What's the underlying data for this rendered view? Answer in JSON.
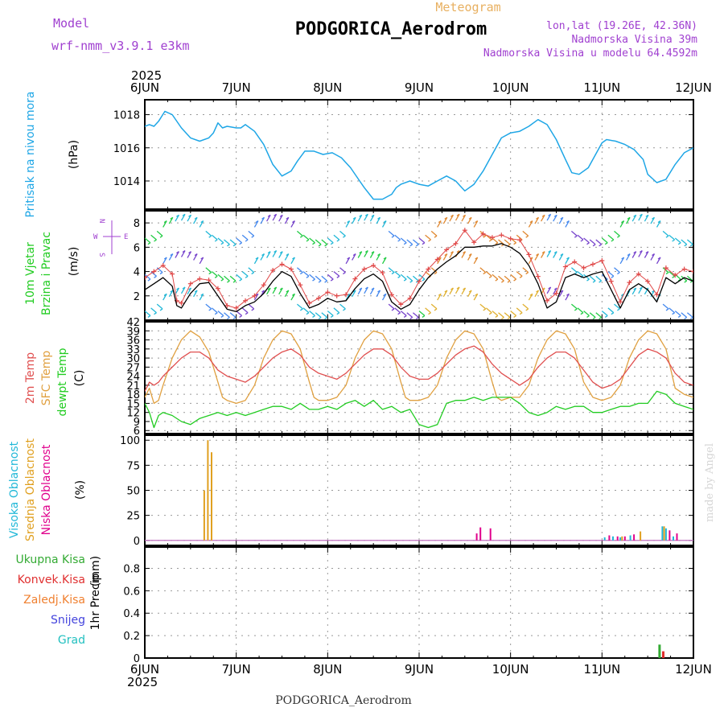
{
  "header": {
    "model_label": "Model",
    "model_name": "wrf-nmm_v3.9.1 e3km",
    "product": "Meteogram",
    "station": "PODGORICA_Aerodrom",
    "lonlat": "lon,lat (19.26E, 42.36N)",
    "elevation": "Nadmorska Visina 39m",
    "model_elevation": "Nadmorska Visina u modelu 64.4592m",
    "credit": "made by Angel",
    "footer_station": "PODGORICA_Aerodrom"
  },
  "colors": {
    "pressure": "#1ea6e6",
    "wind_speed": "#000000",
    "wind_gust": "#e04848",
    "temp_2m": "#e05050",
    "temp_sfc": "#e0a040",
    "dewpoint": "#22cc22",
    "cloud_high": "#22b8d8",
    "cloud_mid": "#e0a020",
    "cloud_low": "#e0008c",
    "precip_total": "#33aa33",
    "precip_conv": "#e03030",
    "precip_frz": "#f08030",
    "precip_snow": "#4444dd",
    "precip_graup": "#22c0c0",
    "purple_text": "#a040d0",
    "orange_text": "#e8b060"
  },
  "chart_data": [
    {
      "id": "pressure",
      "type": "line",
      "ylabel": "Pritisak na nivou mora",
      "units": "(hPa)",
      "ylim": [
        1012.3,
        1018.9
      ],
      "yticks": [
        "1014",
        "1016",
        "1018"
      ],
      "ytick_values": [
        1014,
        1016,
        1018
      ],
      "x_axis": {
        "year": "2025",
        "ticks": [
          "6JUN",
          "7JUN",
          "8JUN",
          "9JUN",
          "10JUN",
          "11JUN",
          "12JUN"
        ],
        "range_days": [
          0,
          6
        ]
      },
      "series": [
        {
          "name": "Pressure",
          "x": [
            0,
            0.05,
            0.1,
            0.15,
            0.22,
            0.3,
            0.4,
            0.5,
            0.6,
            0.7,
            0.75,
            0.8,
            0.85,
            0.9,
            1.0,
            1.05,
            1.1,
            1.2,
            1.3,
            1.4,
            1.5,
            1.6,
            1.67,
            1.75,
            1.85,
            1.95,
            2.05,
            2.15,
            2.25,
            2.35,
            2.4,
            2.5,
            2.6,
            2.7,
            2.75,
            2.8,
            2.9,
            3.0,
            3.1,
            3.2,
            3.3,
            3.4,
            3.45,
            3.5,
            3.6,
            3.7,
            3.8,
            3.9,
            4.0,
            4.1,
            4.2,
            4.3,
            4.4,
            4.5,
            4.6,
            4.67,
            4.75,
            4.85,
            5.0,
            5.05,
            5.15,
            5.25,
            5.35,
            5.45,
            5.5,
            5.6,
            5.7,
            5.8,
            5.9,
            6.0
          ],
          "values": [
            1017.3,
            1017.4,
            1017.3,
            1017.6,
            1018.2,
            1018.0,
            1017.2,
            1016.6,
            1016.4,
            1016.6,
            1016.9,
            1017.5,
            1017.2,
            1017.3,
            1017.2,
            1017.2,
            1017.4,
            1017.0,
            1016.2,
            1015.0,
            1014.3,
            1014.6,
            1015.2,
            1015.8,
            1015.8,
            1015.6,
            1015.7,
            1015.4,
            1014.8,
            1014.0,
            1013.6,
            1012.9,
            1012.9,
            1013.2,
            1013.6,
            1013.8,
            1014.0,
            1013.8,
            1013.7,
            1014.0,
            1014.3,
            1014.0,
            1013.7,
            1013.4,
            1013.8,
            1014.6,
            1015.6,
            1016.6,
            1016.9,
            1017.0,
            1017.3,
            1017.7,
            1017.4,
            1016.5,
            1015.3,
            1014.5,
            1014.4,
            1014.8,
            1016.3,
            1016.5,
            1016.4,
            1016.2,
            1015.9,
            1015.3,
            1014.4,
            1013.9,
            1014.1,
            1015.0,
            1015.7,
            1016.0
          ]
        }
      ]
    },
    {
      "id": "wind",
      "type": "line",
      "ylabel": [
        "10m Vjetar",
        "Brzina i Pravac"
      ],
      "units": "(m/s)",
      "ylim": [
        0,
        9
      ],
      "yticks": [
        "2",
        "4",
        "6",
        "8"
      ],
      "ytick_values": [
        2,
        4,
        6,
        8
      ],
      "compass": {
        "n": "N",
        "s": "S",
        "e": "E",
        "w": "W"
      },
      "series": [
        {
          "name": "Wind speed",
          "x": [
            0,
            0.1,
            0.2,
            0.3,
            0.35,
            0.4,
            0.5,
            0.6,
            0.7,
            0.8,
            0.9,
            1.0,
            1.1,
            1.2,
            1.3,
            1.4,
            1.5,
            1.6,
            1.7,
            1.8,
            1.9,
            2.0,
            2.1,
            2.2,
            2.3,
            2.4,
            2.5,
            2.6,
            2.7,
            2.8,
            2.9,
            3.0,
            3.1,
            3.2,
            3.3,
            3.4,
            3.5,
            3.6,
            3.7,
            3.8,
            3.9,
            4.0,
            4.1,
            4.2,
            4.3,
            4.4,
            4.5,
            4.6,
            4.7,
            4.8,
            4.9,
            5.0,
            5.1,
            5.2,
            5.3,
            5.4,
            5.5,
            5.6,
            5.7,
            5.8,
            5.9,
            6.0
          ],
          "values": [
            2.5,
            3.0,
            3.5,
            2.8,
            1.2,
            1.0,
            2.2,
            3.0,
            3.1,
            2.0,
            0.9,
            0.7,
            1.2,
            1.5,
            2.2,
            3.2,
            4.0,
            3.6,
            2.2,
            1.0,
            1.3,
            1.8,
            1.5,
            1.6,
            2.6,
            3.4,
            3.8,
            3.2,
            1.5,
            0.9,
            1.3,
            2.5,
            3.5,
            4.2,
            4.8,
            5.3,
            6.0,
            6.0,
            6.1,
            6.1,
            6.3,
            6.0,
            5.5,
            4.5,
            3.0,
            1.0,
            1.5,
            3.5,
            3.8,
            3.5,
            3.8,
            4.0,
            2.5,
            1.0,
            2.5,
            3.0,
            2.5,
            1.5,
            3.5,
            3.0,
            3.5,
            3.2
          ]
        },
        {
          "name": "Wind gust",
          "x": [
            0,
            0.1,
            0.2,
            0.3,
            0.35,
            0.4,
            0.5,
            0.6,
            0.7,
            0.8,
            0.9,
            1.0,
            1.1,
            1.2,
            1.3,
            1.4,
            1.5,
            1.6,
            1.7,
            1.8,
            1.9,
            2.0,
            2.1,
            2.2,
            2.3,
            2.4,
            2.5,
            2.6,
            2.7,
            2.8,
            2.9,
            3.0,
            3.1,
            3.2,
            3.3,
            3.4,
            3.5,
            3.6,
            3.7,
            3.8,
            3.9,
            4.0,
            4.1,
            4.2,
            4.3,
            4.4,
            4.5,
            4.6,
            4.7,
            4.8,
            4.9,
            5.0,
            5.1,
            5.2,
            5.3,
            5.4,
            5.5,
            5.6,
            5.7,
            5.8,
            5.9,
            6.0
          ],
          "values": [
            3.5,
            4.0,
            4.5,
            3.8,
            1.6,
            1.4,
            3.0,
            3.4,
            3.3,
            2.6,
            1.2,
            1.0,
            1.6,
            2.0,
            2.9,
            4.1,
            4.6,
            4.2,
            2.9,
            1.4,
            1.8,
            2.3,
            2.0,
            2.1,
            3.4,
            4.2,
            4.5,
            3.9,
            2.1,
            1.3,
            1.8,
            3.2,
            4.2,
            5.0,
            5.8,
            6.3,
            7.4,
            6.4,
            7.1,
            6.8,
            7.0,
            6.7,
            6.6,
            5.4,
            3.6,
            1.6,
            2.2,
            4.4,
            4.8,
            4.3,
            4.6,
            4.9,
            3.2,
            1.5,
            3.1,
            3.8,
            3.2,
            2.1,
            4.3,
            3.7,
            4.2,
            4.0
          ]
        }
      ],
      "barb_rows": [
        1,
        4,
        7
      ]
    },
    {
      "id": "temperature",
      "type": "line",
      "ylabel": [
        "2m Temp",
        "SFC Temp",
        "dewpt Temp"
      ],
      "units": "(C)",
      "ylim": [
        5,
        42
      ],
      "yticks": [
        "6",
        "9",
        "12",
        "15",
        "18",
        "21",
        "24",
        "27",
        "30",
        "33",
        "36",
        "39",
        "42"
      ],
      "ytick_values": [
        6,
        9,
        12,
        15,
        18,
        21,
        24,
        27,
        30,
        33,
        36,
        39,
        42
      ],
      "series": [
        {
          "name": "2m Temp",
          "x": [
            0,
            0.05,
            0.1,
            0.15,
            0.2,
            0.3,
            0.4,
            0.5,
            0.6,
            0.7,
            0.8,
            0.9,
            1.0,
            1.1,
            1.2,
            1.3,
            1.4,
            1.5,
            1.6,
            1.7,
            1.8,
            1.9,
            2.0,
            2.1,
            2.2,
            2.3,
            2.4,
            2.5,
            2.6,
            2.7,
            2.8,
            2.9,
            3.0,
            3.1,
            3.2,
            3.3,
            3.4,
            3.5,
            3.6,
            3.7,
            3.8,
            3.9,
            4.0,
            4.1,
            4.2,
            4.3,
            4.4,
            4.5,
            4.6,
            4.7,
            4.8,
            4.9,
            5.0,
            5.1,
            5.2,
            5.3,
            5.4,
            5.5,
            5.6,
            5.7,
            5.8,
            5.9,
            6.0
          ],
          "values": [
            19,
            22,
            21,
            22,
            24,
            27,
            30,
            32,
            32,
            30,
            26,
            24,
            23,
            22,
            24,
            27,
            30,
            32,
            33,
            31,
            27,
            25,
            24,
            23,
            25,
            28,
            31,
            33,
            33,
            31,
            27,
            24,
            23,
            23,
            25,
            28,
            31,
            33,
            34,
            32,
            28,
            25,
            23,
            21,
            23,
            27,
            30,
            32,
            32,
            30,
            26,
            22,
            20,
            21,
            23,
            27,
            31,
            33,
            32,
            30,
            25,
            22,
            21
          ]
        },
        {
          "name": "SFC Temp",
          "x": [
            0,
            0.05,
            0.1,
            0.15,
            0.2,
            0.3,
            0.4,
            0.5,
            0.6,
            0.7,
            0.8,
            0.85,
            0.9,
            1.0,
            1.1,
            1.2,
            1.3,
            1.4,
            1.5,
            1.6,
            1.7,
            1.8,
            1.85,
            1.9,
            2.0,
            2.1,
            2.2,
            2.3,
            2.4,
            2.5,
            2.6,
            2.7,
            2.8,
            2.85,
            2.9,
            3.0,
            3.1,
            3.2,
            3.3,
            3.4,
            3.5,
            3.6,
            3.7,
            3.8,
            3.85,
            3.9,
            4.0,
            4.1,
            4.2,
            4.3,
            4.4,
            4.5,
            4.6,
            4.7,
            4.8,
            4.9,
            5.0,
            5.1,
            5.2,
            5.3,
            5.4,
            5.5,
            5.6,
            5.7,
            5.8,
            5.9,
            6.0
          ],
          "values": [
            17,
            20,
            15,
            16,
            21,
            30,
            36,
            39,
            37,
            32,
            22,
            17,
            16,
            15,
            16,
            21,
            30,
            36,
            39,
            38,
            33,
            22,
            17,
            16,
            16,
            17,
            21,
            30,
            36,
            39,
            38,
            33,
            22,
            17,
            16,
            16,
            17,
            21,
            30,
            36,
            39,
            38,
            33,
            22,
            17,
            16,
            17,
            17,
            21,
            30,
            36,
            39,
            38,
            33,
            22,
            17,
            16,
            17,
            21,
            30,
            36,
            39,
            38,
            33,
            20,
            18,
            17
          ]
        },
        {
          "name": "dewpt Temp",
          "x": [
            0,
            0.05,
            0.1,
            0.15,
            0.2,
            0.3,
            0.4,
            0.5,
            0.6,
            0.7,
            0.8,
            0.9,
            1.0,
            1.1,
            1.2,
            1.3,
            1.4,
            1.5,
            1.6,
            1.7,
            1.8,
            1.9,
            2.0,
            2.1,
            2.2,
            2.3,
            2.4,
            2.5,
            2.6,
            2.7,
            2.8,
            2.9,
            3.0,
            3.1,
            3.2,
            3.3,
            3.4,
            3.5,
            3.6,
            3.7,
            3.8,
            3.9,
            4.0,
            4.1,
            4.2,
            4.3,
            4.4,
            4.5,
            4.6,
            4.7,
            4.8,
            4.9,
            5.0,
            5.1,
            5.2,
            5.3,
            5.4,
            5.5,
            5.6,
            5.7,
            5.8,
            5.9,
            6.0
          ],
          "values": [
            15,
            12,
            7,
            11,
            12,
            11,
            9,
            8,
            10,
            11,
            12,
            11,
            12,
            11,
            12,
            13,
            14,
            14,
            13,
            15,
            13,
            13,
            14,
            13,
            15,
            16,
            14,
            16,
            13,
            14,
            12,
            13,
            8,
            7,
            8,
            15,
            16,
            16,
            17,
            16,
            17,
            17,
            17,
            15,
            12,
            11,
            12,
            14,
            13,
            14,
            14,
            12,
            12,
            13,
            14,
            14,
            15,
            15,
            19,
            18,
            15,
            14,
            13
          ]
        }
      ]
    },
    {
      "id": "clouds",
      "type": "bar",
      "ylabel": [
        "Visoka Oblacnost",
        "Srednja Oblacnost",
        "Niska Oblacnost"
      ],
      "units": "(%)",
      "ylim": [
        -5,
        105
      ],
      "yticks": [
        "0",
        "25",
        "50",
        "75",
        "100"
      ],
      "ytick_values": [
        0,
        25,
        50,
        75,
        100
      ],
      "series": [
        {
          "name": "Srednja Oblacnost",
          "x": [
            0.65,
            0.69,
            0.73
          ],
          "values": [
            50,
            100,
            88
          ]
        },
        {
          "name": "Visoka Oblacnost",
          "x": [
            5.03,
            5.12,
            5.2,
            5.31,
            5.66,
            5.7,
            5.78
          ],
          "values": [
            3,
            4,
            3,
            5,
            14,
            12,
            4
          ]
        },
        {
          "name": "Niska Oblacnost",
          "x": [
            3.63,
            3.67,
            3.78,
            5.08,
            5.17,
            5.25,
            5.35,
            5.74,
            5.82
          ],
          "values": [
            7,
            13,
            12,
            5,
            4,
            4,
            6,
            10,
            7
          ]
        },
        {
          "name": "Srednja Oblacnost",
          "x": [
            5.22,
            5.42,
            5.68
          ],
          "values": [
            4,
            9,
            14
          ]
        }
      ]
    },
    {
      "id": "precip",
      "type": "bar",
      "ylabel": "1hr Precip",
      "units": "(mm)",
      "ylim": [
        0,
        0.99
      ],
      "yticks": [
        "0",
        "0.2",
        "0.4",
        "0.6",
        "0.8"
      ],
      "ytick_values": [
        0,
        0.2,
        0.4,
        0.6,
        0.8
      ],
      "legend": [
        "Ukupna Kisa",
        "Konvek.Kisa",
        "Zaledj.Kisa",
        "Snijeg",
        "Grad"
      ],
      "series": [
        {
          "name": "Ukupna Kisa",
          "x": [
            5.63
          ],
          "values": [
            0.12
          ]
        },
        {
          "name": "Konvek.Kisa",
          "x": [
            5.67
          ],
          "values": [
            0.06
          ]
        }
      ]
    }
  ]
}
